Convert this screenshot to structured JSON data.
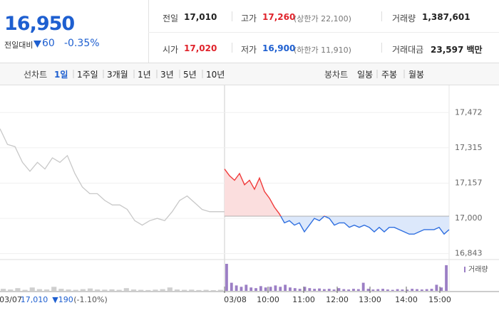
{
  "header": {
    "price": "16,950",
    "change_label": "전일대비",
    "change": "60",
    "change_pct": "-0.35%"
  },
  "stats": [
    {
      "label": "전일",
      "value": {
        "value": 17010,
        "label": "17,010"
      }
    },
    {
      "label": "고가",
      "value": "17,260",
      "note": "(상한가 22,100)"
    },
    {
      "label": "거래량",
      "value": "1,387,601"
    },
    {
      "label": "시가",
      "value": "17,020"
    },
    {
      "label": "저가",
      "value": "16,900",
      "note": "(하한가 11,910)"
    },
    {
      "label": "거래대금",
      "value": "23,597 백만"
    }
  ],
  "toolbar": {
    "line_label": "선차트",
    "line_periods": [
      "1일",
      "1주일",
      "3개월",
      "1년",
      "3년",
      "5년",
      "10년"
    ],
    "candle_label": "봉차트",
    "candle_periods": [
      "일봉",
      "주봉",
      "월봉"
    ]
  },
  "chart_data": {
    "type": "line",
    "ylim": [
      16826,
      17587
    ],
    "yticks": [
      {
        "value": 16843,
        "label": "16,843"
      },
      {
        "value": 17000,
        "label": "17,000"
      },
      {
        "value": 17157,
        "label": "17,157"
      },
      {
        "value": 17315,
        "label": "17,315"
      },
      {
        "value": 17472,
        "label": "17,472"
      }
    ],
    "prev_values": [
      17400,
      17330,
      17320,
      17250,
      17210,
      17250,
      17220,
      17270,
      17250,
      17280,
      17200,
      17140,
      17110,
      17110,
      17080,
      17060,
      17060,
      17040,
      16990,
      16970,
      16990,
      17000,
      16990,
      17030,
      17080,
      17100,
      17070,
      17040,
      17030,
      17030,
      17030
    ],
    "values": [
      17220,
      17190,
      17170,
      17200,
      17150,
      17170,
      17130,
      17180,
      17120,
      17090,
      17050,
      17020,
      16980,
      16990,
      16970,
      16980,
      16940,
      16970,
      17000,
      16990,
      17010,
      17000,
      16970,
      16980,
      16980,
      16960,
      16970,
      16960,
      16970,
      16960,
      16940,
      16960,
      16940,
      16960,
      16960,
      16950,
      16940,
      16930,
      16930,
      16940,
      16950,
      16950,
      16950,
      16960,
      16930,
      16950
    ],
    "volume_name": "거래량",
    "prev_volume": [
      3000,
      2000,
      4000,
      1500,
      5000,
      2500,
      2000,
      6000,
      3000,
      2000,
      1500,
      2500,
      3500,
      2000,
      1800,
      2200,
      1500,
      4000,
      2000,
      1500,
      1200,
      1800,
      2500,
      5000,
      2000,
      1500,
      1800,
      1200,
      1500,
      1000,
      1500
    ],
    "volume": [
      40000,
      12000,
      8000,
      6000,
      9000,
      5000,
      4000,
      7000,
      5000,
      6000,
      8000,
      6000,
      9000,
      5000,
      4000,
      3000,
      6000,
      4000,
      3000,
      3500,
      2500,
      3000,
      2000,
      4000,
      2500,
      2000,
      3000,
      2500,
      12000,
      3000,
      2000,
      2500,
      3000,
      2000,
      1500,
      2500,
      2000,
      1800,
      3000,
      2500,
      2000,
      2500,
      3000,
      9000,
      5000,
      38000
    ],
    "prev_label": {
      "date": "03/07",
      "close": "17,010",
      "change": "▼190",
      "pct": "(-1.10%)"
    },
    "xticks": [
      "03/08",
      "10:00",
      "11:00",
      "12:00",
      "13:00",
      "14:00",
      "15:00"
    ]
  }
}
